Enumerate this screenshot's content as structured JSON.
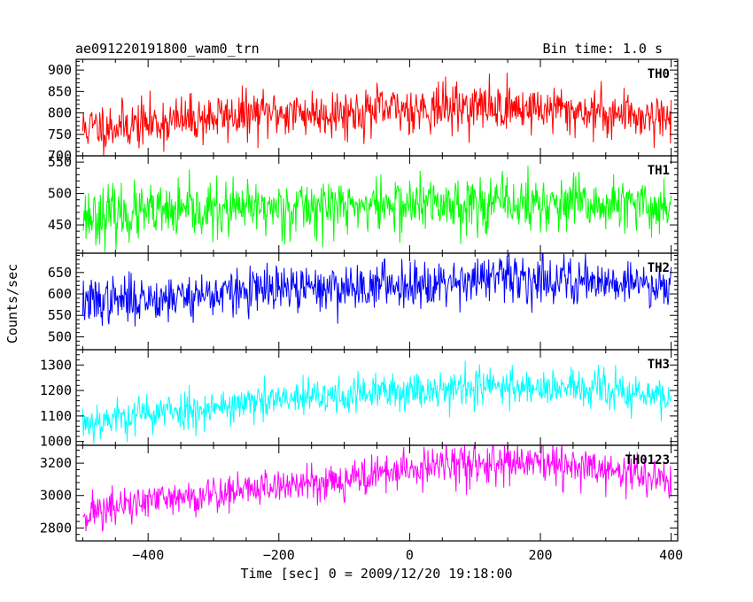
{
  "chart_data": {
    "type": "line",
    "title_left": "ae091220191800_wam0_trn",
    "title_right": "Bin time: 1.0 s",
    "xlabel": "Time [sec] 0 = 2009/12/20 19:18:00",
    "ylabel": "Counts/sec",
    "xlim": [
      -510,
      410
    ],
    "x_ticks": [
      -400,
      -200,
      0,
      200,
      400
    ],
    "x_tick_labels": [
      "−400",
      "−200",
      "0",
      "200",
      "400"
    ],
    "data_range": [
      -500,
      400
    ],
    "bin_time": 1.0,
    "grid": false,
    "legend": "none",
    "panels": [
      {
        "name": "TH0",
        "color": "#ff0000",
        "ylim": [
          700,
          925
        ],
        "y_ticks": [
          700,
          750,
          800,
          850,
          900
        ],
        "trend_x": [
          -500,
          -400,
          -300,
          -200,
          -100,
          0,
          100,
          200,
          300,
          400
        ],
        "trend_y": [
          765,
          775,
          790,
          800,
          800,
          810,
          815,
          810,
          800,
          790
        ],
        "noise_sd": 28,
        "seed": 11
      },
      {
        "name": "TH1",
        "color": "#00ff00",
        "ylim": [
          405,
          560
        ],
        "y_ticks": [
          450,
          500,
          550
        ],
        "trend_x": [
          -500,
          -400,
          -300,
          -200,
          -100,
          0,
          100,
          200,
          300,
          400
        ],
        "trend_y": [
          465,
          468,
          472,
          478,
          480,
          482,
          485,
          483,
          480,
          478
        ],
        "noise_sd": 22,
        "seed": 23
      },
      {
        "name": "TH2",
        "color": "#0000ff",
        "ylim": [
          470,
          695
        ],
        "y_ticks": [
          500,
          550,
          600,
          650
        ],
        "trend_x": [
          -500,
          -400,
          -300,
          -200,
          -100,
          0,
          100,
          200,
          300,
          400
        ],
        "trend_y": [
          580,
          590,
          600,
          610,
          615,
          625,
          635,
          635,
          630,
          620
        ],
        "noise_sd": 27,
        "seed": 37
      },
      {
        "name": "TH3",
        "color": "#00ffff",
        "ylim": [
          985,
          1360
        ],
        "y_ticks": [
          1000,
          1100,
          1200,
          1300
        ],
        "trend_x": [
          -500,
          -400,
          -300,
          -200,
          -100,
          0,
          100,
          200,
          300,
          400
        ],
        "trend_y": [
          1075,
          1110,
          1135,
          1160,
          1180,
          1200,
          1215,
          1215,
          1200,
          1170
        ],
        "noise_sd": 38,
        "seed": 53
      },
      {
        "name": "TH0123",
        "color": "#ff00ff",
        "ylim": [
          2720,
          3310
        ],
        "y_ticks": [
          2800,
          3000,
          3200
        ],
        "trend_x": [
          -500,
          -400,
          -300,
          -200,
          -100,
          0,
          100,
          200,
          300,
          400
        ],
        "trend_y": [
          2890,
          2960,
          3010,
          3060,
          3100,
          3160,
          3200,
          3190,
          3160,
          3090
        ],
        "noise_sd": 60,
        "seed": 71
      }
    ]
  }
}
